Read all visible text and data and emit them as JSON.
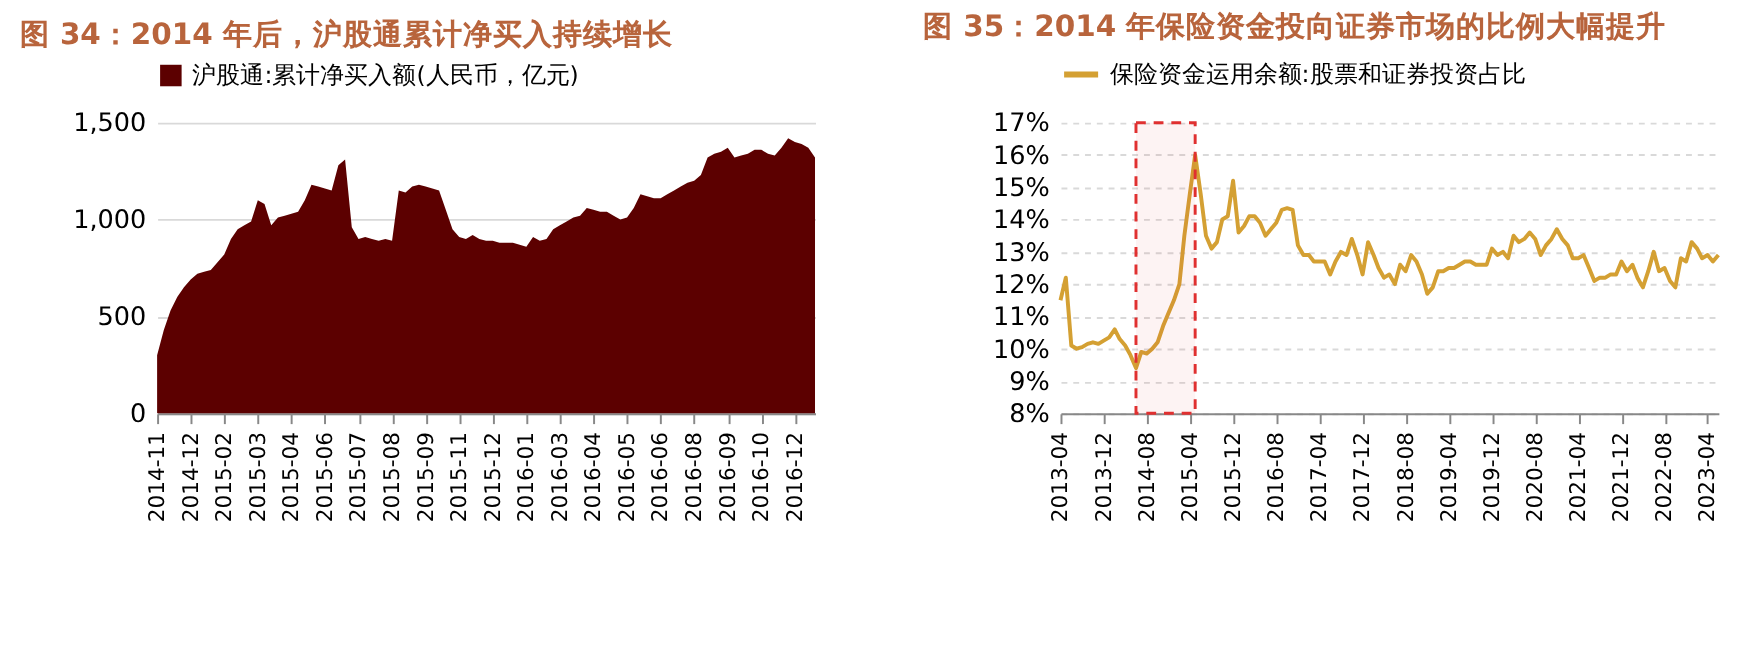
{
  "chart_data": [
    {
      "type": "area",
      "title": "图 34：2014 年后，沪股通累计净买入持续增长",
      "categories": [
        "2014-11",
        null,
        null,
        null,
        null,
        "2014-12",
        null,
        null,
        null,
        null,
        "2015-02",
        null,
        null,
        null,
        null,
        "2015-03",
        null,
        null,
        null,
        null,
        "2015-04",
        null,
        null,
        null,
        null,
        "2015-06",
        null,
        null,
        null,
        null,
        "2015-07",
        null,
        null,
        null,
        null,
        "2015-08",
        null,
        null,
        null,
        null,
        "2015-09",
        null,
        null,
        null,
        null,
        "2015-11",
        null,
        null,
        null,
        null,
        "2015-12",
        null,
        null,
        null,
        null,
        "2016-01",
        null,
        null,
        null,
        null,
        "2016-03",
        null,
        null,
        null,
        null,
        "2016-04",
        null,
        null,
        null,
        null,
        "2016-05",
        null,
        null,
        null,
        null,
        "2016-06",
        null,
        null,
        null,
        null,
        "2016-08",
        null,
        null,
        null,
        null,
        "2016-09",
        null,
        null,
        null,
        null,
        "2016-10",
        null,
        null,
        null,
        null,
        "2016-12",
        null,
        null,
        null
      ],
      "series": [
        {
          "name": "沪股通:累计净买入额(人民币，亿元)",
          "color": "#5c0000",
          "values": [
            300,
            430,
            530,
            600,
            650,
            690,
            720,
            730,
            740,
            780,
            820,
            900,
            950,
            970,
            990,
            1100,
            1080,
            970,
            1010,
            1020,
            1030,
            1040,
            1100,
            1180,
            1170,
            1160,
            1150,
            1280,
            1310,
            960,
            900,
            910,
            900,
            890,
            900,
            890,
            1150,
            1140,
            1170,
            1180,
            1170,
            1160,
            1150,
            1050,
            950,
            910,
            900,
            920,
            900,
            890,
            890,
            880,
            880,
            880,
            870,
            860,
            910,
            890,
            900,
            950,
            970,
            990,
            1010,
            1020,
            1060,
            1050,
            1040,
            1040,
            1020,
            1000,
            1010,
            1060,
            1130,
            1120,
            1110,
            1110,
            1130,
            1150,
            1170,
            1190,
            1200,
            1230,
            1320,
            1340,
            1350,
            1370,
            1320,
            1330,
            1340,
            1360,
            1360,
            1340,
            1330,
            1370,
            1420,
            1400,
            1390,
            1370,
            1320
          ]
        }
      ],
      "ylim": [
        0,
        1500
      ],
      "yticks": [
        0,
        500,
        {
          "value": 1000,
          "label": "1,000"
        },
        {
          "value": 1500,
          "label": "1,500"
        }
      ],
      "grid": "y",
      "legend": "top"
    },
    {
      "type": "line",
      "title": "图 35：2014 年保险资金投向证券市场的比例大幅提升",
      "x": [
        "2013-04",
        "2013-05",
        "2013-06",
        "2013-07",
        "2013-08",
        "2013-09",
        "2013-10",
        "2013-11",
        "2013-12",
        "2014-01",
        "2014-02",
        "2014-03",
        "2014-04",
        "2014-05",
        "2014-06",
        "2014-07",
        "2014-08",
        "2014-09",
        "2014-10",
        "2014-11",
        "2014-12",
        "2015-01",
        "2015-02",
        "2015-03",
        "2015-04",
        "2015-05",
        "2015-06",
        "2015-07",
        "2015-08",
        "2015-09",
        "2015-10",
        "2015-11",
        "2015-12",
        "2016-01",
        "2016-02",
        "2016-03",
        "2016-04",
        "2016-05",
        "2016-06",
        "2016-07",
        "2016-08",
        "2016-09",
        "2016-10",
        "2016-11",
        "2016-12",
        "2017-01",
        "2017-02",
        "2017-03",
        "2017-04",
        "2017-05",
        "2017-06",
        "2017-07",
        "2017-08",
        "2017-09",
        "2017-10",
        "2017-11",
        "2017-12",
        "2018-01",
        "2018-02",
        "2018-03",
        "2018-04",
        "2018-05",
        "2018-06",
        "2018-07",
        "2018-08",
        "2018-09",
        "2018-10",
        "2018-11",
        "2018-12",
        "2019-01",
        "2019-02",
        "2019-03",
        "2019-04",
        "2019-05",
        "2019-06",
        "2019-07",
        "2019-08",
        "2019-09",
        "2019-10",
        "2019-11",
        "2019-12",
        "2020-01",
        "2020-02",
        "2020-03",
        "2020-04",
        "2020-05",
        "2020-06",
        "2020-07",
        "2020-08",
        "2020-09",
        "2020-10",
        "2020-11",
        "2020-12",
        "2021-01",
        "2021-02",
        "2021-03",
        "2021-04",
        "2021-05",
        "2021-06",
        "2021-07",
        "2021-08",
        "2021-09",
        "2021-10",
        "2021-11",
        "2021-12",
        "2022-01",
        "2022-02",
        "2022-03",
        "2022-04",
        "2022-05",
        "2022-06",
        "2022-07",
        "2022-08",
        "2022-09",
        "2022-10",
        "2022-11",
        "2022-12",
        "2023-01",
        "2023-02",
        "2023-03",
        "2023-04",
        "2023-05",
        "2023-06"
      ],
      "series": [
        {
          "name": "保险资金运用余额:股票和证券投资占比",
          "color": "#d4a033",
          "values": [
            11.5,
            12.2,
            10.1,
            10.0,
            10.05,
            10.15,
            10.2,
            10.15,
            10.25,
            10.35,
            10.6,
            10.3,
            10.1,
            9.8,
            9.4,
            9.9,
            9.85,
            10.0,
            10.2,
            10.7,
            11.1,
            11.5,
            12.0,
            13.5,
            14.8,
            16.0,
            14.8,
            13.5,
            13.1,
            13.3,
            14.0,
            14.1,
            15.2,
            13.6,
            13.8,
            14.1,
            14.1,
            13.9,
            13.5,
            13.7,
            13.9,
            14.3,
            14.35,
            14.3,
            13.2,
            12.9,
            12.9,
            12.7,
            12.7,
            12.7,
            12.3,
            12.7,
            13.0,
            12.9,
            13.4,
            12.9,
            12.3,
            13.3,
            12.9,
            12.5,
            12.2,
            12.3,
            12.0,
            12.6,
            12.4,
            12.9,
            12.7,
            12.3,
            11.7,
            11.9,
            12.4,
            12.4,
            12.5,
            12.5,
            12.6,
            12.7,
            12.7,
            12.6,
            12.6,
            12.6,
            13.1,
            12.9,
            13.0,
            12.8,
            13.5,
            13.3,
            13.4,
            13.6,
            13.4,
            12.9,
            13.2,
            13.4,
            13.7,
            13.4,
            13.2,
            12.8,
            12.8,
            12.9,
            12.5,
            12.1,
            12.2,
            12.2,
            12.3,
            12.3,
            12.7,
            12.4,
            12.6,
            12.2,
            11.9,
            12.4,
            13.0,
            12.4,
            12.5,
            12.1,
            11.9,
            12.8,
            12.7,
            13.3,
            13.1,
            12.8,
            12.9,
            12.7,
            12.9
          ]
        }
      ],
      "xlim": [
        "2013-04",
        "2023-06"
      ],
      "xticks": [
        "2013-04",
        "2013-12",
        "2014-08",
        "2015-04",
        "2015-12",
        "2016-08",
        "2017-04",
        "2017-12",
        "2018-08",
        "2019-04",
        "2019-12",
        "2020-08",
        "2021-04",
        "2021-12",
        "2022-08",
        "2023-04"
      ],
      "ylim": [
        8,
        17
      ],
      "yticks": [
        {
          "value": 8,
          "label": "8%"
        },
        {
          "value": 9,
          "label": "9%"
        },
        {
          "value": 10,
          "label": "10%"
        },
        {
          "value": 11,
          "label": "11%"
        },
        {
          "value": 12,
          "label": "12%"
        },
        {
          "value": 13,
          "label": "13%"
        },
        {
          "value": 14,
          "label": "14%"
        },
        {
          "value": 15,
          "label": "15%"
        },
        {
          "value": 16,
          "label": "16%"
        },
        {
          "value": 17,
          "label": "17%"
        }
      ],
      "bands": [
        {
          "axis": "x",
          "from": "2014-06",
          "to": "2015-05",
          "color": "#e03030"
        }
      ],
      "grid": "y",
      "legend": "top",
      "line_style": "solid"
    }
  ]
}
